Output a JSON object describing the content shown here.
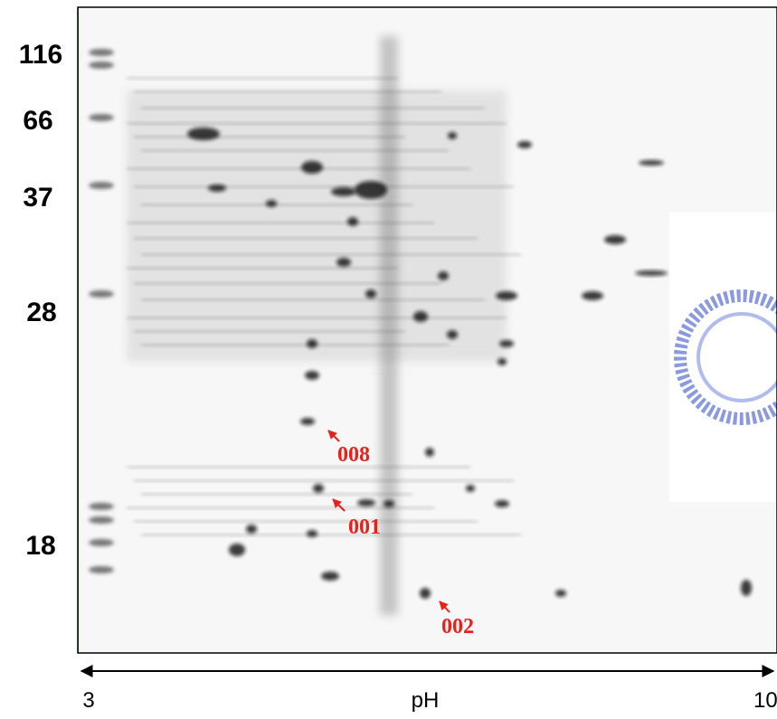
{
  "markers": [
    "116",
    "66",
    "37",
    "28",
    "18"
  ],
  "spots": [
    "008",
    "001",
    "002"
  ],
  "axis": {
    "start": "3",
    "label": "pH",
    "end": "10"
  }
}
